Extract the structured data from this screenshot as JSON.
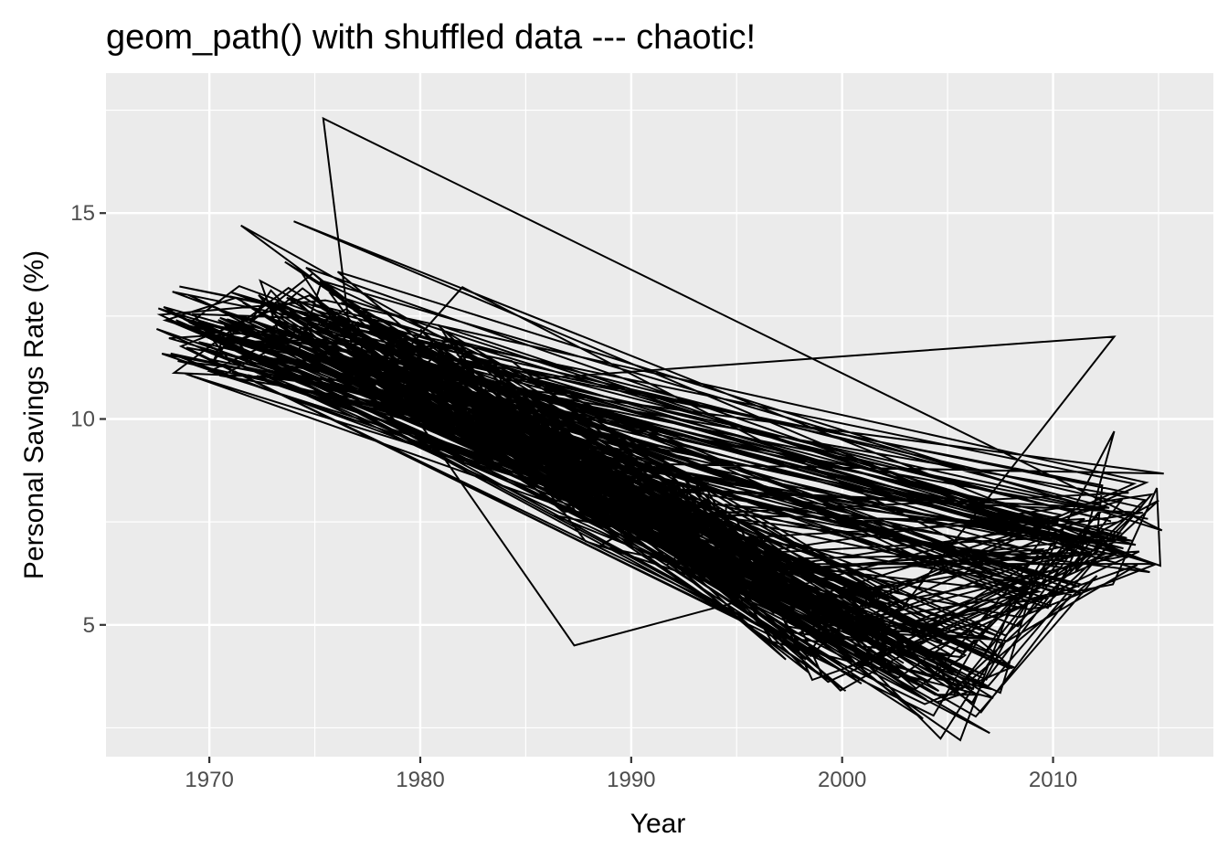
{
  "chart_data": {
    "type": "line",
    "title": "geom_path() with shuffled data --- chaotic!",
    "xlabel": "Year",
    "ylabel": "Personal Savings Rate (%)",
    "x_ticks": [
      1970,
      1980,
      1990,
      2000,
      2010
    ],
    "y_ticks": [
      5,
      10,
      15
    ],
    "xlim": [
      1965.1,
      2017.6
    ],
    "ylim": [
      1.8,
      18.4
    ],
    "grid": true,
    "legend": "none",
    "line_color": "#000000",
    "panel_background": "#ebebeb",
    "grid_color": "#ffffff",
    "description": "Monthly personal savings rate 1967-2015, rows shuffled so the path connects points in random order",
    "trend_anchors": {
      "x": [
        1967.5,
        1970,
        1972,
        1975,
        1978,
        1981,
        1984,
        1987,
        1990,
        1993,
        1996,
        1999,
        2002,
        2005,
        2007,
        2009,
        2011,
        2013,
        2015.3
      ],
      "y": [
        12.0,
        12.0,
        12.2,
        13.0,
        11.0,
        11.0,
        10.5,
        8.3,
        8.0,
        7.5,
        6.0,
        4.7,
        5.0,
        3.5,
        3.6,
        6.0,
        7.0,
        7.0,
        7.5
      ]
    },
    "outliers": [
      {
        "x": 1975.4,
        "y": 17.3
      },
      {
        "x": 1974.0,
        "y": 14.8
      },
      {
        "x": 1971.5,
        "y": 14.7
      },
      {
        "x": 1987.3,
        "y": 4.5
      },
      {
        "x": 2005.6,
        "y": 2.2
      },
      {
        "x": 2012.9,
        "y": 12.0
      },
      {
        "x": 2012.9,
        "y": 9.7
      },
      {
        "x": 1982.0,
        "y": 13.2
      }
    ]
  }
}
